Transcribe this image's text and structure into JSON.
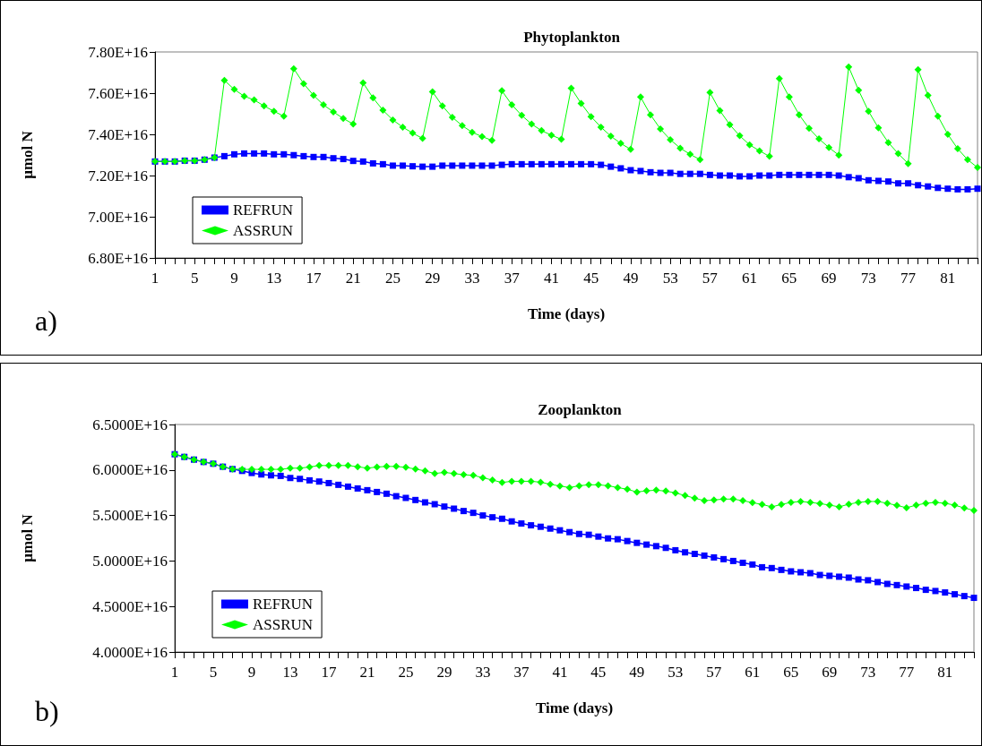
{
  "chart_data": [
    {
      "type": "line",
      "title": "Phytoplankton",
      "xlabel": "Time (days)",
      "ylabel": "µmol N",
      "annotations": [
        "a)"
      ],
      "categories": [
        "1",
        null,
        null,
        null,
        "5",
        null,
        null,
        null,
        "9",
        null,
        null,
        null,
        "13",
        null,
        null,
        null,
        "17",
        null,
        null,
        null,
        "21",
        null,
        null,
        null,
        "25",
        null,
        null,
        null,
        "29",
        null,
        null,
        null,
        "33",
        null,
        null,
        null,
        "37",
        null,
        null,
        null,
        "41",
        null,
        null,
        null,
        "45",
        null,
        null,
        null,
        "49",
        null,
        null,
        null,
        "53",
        null,
        null,
        null,
        "57",
        null,
        null,
        null,
        "61",
        null,
        null,
        null,
        "65",
        null,
        null,
        null,
        "69",
        null,
        null,
        null,
        "73",
        null,
        null,
        null,
        "77",
        null,
        null,
        null,
        "81",
        null,
        null,
        null
      ],
      "series": [
        {
          "name": "REFRUN",
          "color": "#0000ff",
          "marker": "square",
          "values": [
            7.268e+16,
            7.268e+16,
            7.268e+16,
            7.272e+16,
            7.272e+16,
            7.277e+16,
            7.287e+16,
            7.294e+16,
            7.303e+16,
            7.307e+16,
            7.307e+16,
            7.307e+16,
            7.303e+16,
            7.303e+16,
            7.299e+16,
            7.294e+16,
            7.29e+16,
            7.29e+16,
            7.284e+16,
            7.28e+16,
            7.271e+16,
            7.268e+16,
            7.259e+16,
            7.255e+16,
            7.248e+16,
            7.248e+16,
            7.245e+16,
            7.243e+16,
            7.243e+16,
            7.248e+16,
            7.248e+16,
            7.248e+16,
            7.248e+16,
            7.248e+16,
            7.248e+16,
            7.252e+16,
            7.255e+16,
            7.255e+16,
            7.255e+16,
            7.255e+16,
            7.255e+16,
            7.255e+16,
            7.255e+16,
            7.255e+16,
            7.255e+16,
            7.252e+16,
            7.243e+16,
            7.235e+16,
            7.226e+16,
            7.222e+16,
            7.216e+16,
            7.213e+16,
            7.213e+16,
            7.208e+16,
            7.208e+16,
            7.208e+16,
            7.203e+16,
            7.2e+16,
            7.2e+16,
            7.196e+16,
            7.196e+16,
            7.2e+16,
            7.2e+16,
            7.203e+16,
            7.203e+16,
            7.203e+16,
            7.203e+16,
            7.203e+16,
            7.203e+16,
            7.2e+16,
            7.192e+16,
            7.187e+16,
            7.177e+16,
            7.174e+16,
            7.171e+16,
            7.162e+16,
            7.162e+16,
            7.153e+16,
            7.147e+16,
            7.14e+16,
            7.136e+16,
            7.133e+16,
            7.133e+16,
            7.136e+16
          ]
        },
        {
          "name": "ASSRUN",
          "color": "#00ff00",
          "marker": "diamond",
          "values": [
            7.268e+16,
            7.268e+16,
            7.268e+16,
            7.272e+16,
            7.272e+16,
            7.277e+16,
            7.287e+16,
            7.662e+16,
            7.618e+16,
            7.585e+16,
            7.567e+16,
            7.538e+16,
            7.512e+16,
            7.488e+16,
            7.719e+16,
            7.646e+16,
            7.589e+16,
            7.543e+16,
            7.509e+16,
            7.477e+16,
            7.45e+16,
            7.65e+16,
            7.577e+16,
            7.517e+16,
            7.47e+16,
            7.435e+16,
            7.406e+16,
            7.38e+16,
            7.607e+16,
            7.538e+16,
            7.483e+16,
            7.442e+16,
            7.41e+16,
            7.389e+16,
            7.371e+16,
            7.612e+16,
            7.544e+16,
            7.492e+16,
            7.45e+16,
            7.418e+16,
            7.396e+16,
            7.376e+16,
            7.624e+16,
            7.55e+16,
            7.486e+16,
            7.435e+16,
            7.391e+16,
            7.356e+16,
            7.327e+16,
            7.581e+16,
            7.495e+16,
            7.426e+16,
            7.374e+16,
            7.333e+16,
            7.303e+16,
            7.277e+16,
            7.603e+16,
            7.515e+16,
            7.447e+16,
            7.393e+16,
            7.349e+16,
            7.32e+16,
            7.293e+16,
            7.671e+16,
            7.581e+16,
            7.495e+16,
            7.429e+16,
            7.378e+16,
            7.336e+16,
            7.299e+16,
            7.727e+16,
            7.614e+16,
            7.512e+16,
            7.431e+16,
            7.36e+16,
            7.306e+16,
            7.258e+16,
            7.714e+16,
            7.589e+16,
            7.488e+16,
            7.4e+16,
            7.33e+16,
            7.277e+16,
            7.239e+16
          ]
        }
      ],
      "ylim": [
        6.8e+16,
        7.8e+16
      ],
      "yticks": [
        {
          "value": 6.8e+16,
          "label": "6.80E+16"
        },
        {
          "value": 7e+16,
          "label": "7.00E+16"
        },
        {
          "value": 7.2e+16,
          "label": "7.20E+16"
        },
        {
          "value": 7.4e+16,
          "label": "7.40E+16"
        },
        {
          "value": 7.6e+16,
          "label": "7.60E+16"
        },
        {
          "value": 7.8e+16,
          "label": "7.80E+16"
        }
      ],
      "grid": false,
      "legend": "bottom left"
    },
    {
      "type": "line",
      "title": "Zooplankton",
      "xlabel": "Time (days)",
      "ylabel": "µmol N",
      "annotations": [
        "b)"
      ],
      "categories": [
        "1",
        null,
        null,
        null,
        "5",
        null,
        null,
        null,
        "9",
        null,
        null,
        null,
        "13",
        null,
        null,
        null,
        "17",
        null,
        null,
        null,
        "21",
        null,
        null,
        null,
        "25",
        null,
        null,
        null,
        "29",
        null,
        null,
        null,
        "33",
        null,
        null,
        null,
        "37",
        null,
        null,
        null,
        "41",
        null,
        null,
        null,
        "45",
        null,
        null,
        null,
        "49",
        null,
        null,
        null,
        "53",
        null,
        null,
        null,
        "57",
        null,
        null,
        null,
        "61",
        null,
        null,
        null,
        "65",
        null,
        null,
        null,
        "69",
        null,
        null,
        null,
        "73",
        null,
        null,
        null,
        "77",
        null,
        null,
        null,
        "81",
        null,
        null,
        null
      ],
      "series": [
        {
          "name": "REFRUN",
          "color": "#0000ff",
          "marker": "square",
          "values": [
            6.173e+16,
            6.144e+16,
            6.114e+16,
            6.088e+16,
            6.069e+16,
            6.036e+16,
            6.01e+16,
            5.99e+16,
            5.967e+16,
            5.951e+16,
            5.941e+16,
            5.935e+16,
            5.912e+16,
            5.902e+16,
            5.886e+16,
            5.873e+16,
            5.856e+16,
            5.837e+16,
            5.817e+16,
            5.797e+16,
            5.778e+16,
            5.758e+16,
            5.739e+16,
            5.712e+16,
            5.693e+16,
            5.67e+16,
            5.644e+16,
            5.624e+16,
            5.598e+16,
            5.575e+16,
            5.549e+16,
            5.529e+16,
            5.5e+16,
            5.48e+16,
            5.464e+16,
            5.435e+16,
            5.412e+16,
            5.392e+16,
            5.376e+16,
            5.356e+16,
            5.337e+16,
            5.317e+16,
            5.297e+16,
            5.288e+16,
            5.268e+16,
            5.248e+16,
            5.239e+16,
            5.219e+16,
            5.199e+16,
            5.18e+16,
            5.163e+16,
            5.144e+16,
            5.118e+16,
            5.095e+16,
            5.078e+16,
            5.059e+16,
            5.039e+16,
            5.02e+16,
            5e+16,
            4.98e+16,
            4.961e+16,
            4.931e+16,
            4.922e+16,
            4.902e+16,
            4.886e+16,
            4.876e+16,
            4.866e+16,
            4.846e+16,
            4.837e+16,
            4.827e+16,
            4.817e+16,
            4.797e+16,
            4.788e+16,
            4.768e+16,
            4.748e+16,
            4.735e+16,
            4.719e+16,
            4.703e+16,
            4.683e+16,
            4.67e+16,
            4.654e+16,
            4.634e+16,
            4.614e+16,
            4.595e+16
          ]
        },
        {
          "name": "ASSRUN",
          "color": "#00ff00",
          "marker": "diamond",
          "values": [
            6.173e+16,
            6.144e+16,
            6.114e+16,
            6.088e+16,
            6.069e+16,
            6.036e+16,
            6.01e+16,
            6.007e+16,
            6.007e+16,
            6.007e+16,
            6.007e+16,
            6.007e+16,
            6.02e+16,
            6.02e+16,
            6.033e+16,
            6.049e+16,
            6.049e+16,
            6.049e+16,
            6.049e+16,
            6.036e+16,
            6.02e+16,
            6.033e+16,
            6.039e+16,
            6.039e+16,
            6.029e+16,
            6.01e+16,
            5.99e+16,
            5.961e+16,
            5.974e+16,
            5.961e+16,
            5.948e+16,
            5.941e+16,
            5.915e+16,
            5.889e+16,
            5.863e+16,
            5.876e+16,
            5.876e+16,
            5.876e+16,
            5.866e+16,
            5.843e+16,
            5.824e+16,
            5.807e+16,
            5.827e+16,
            5.837e+16,
            5.837e+16,
            5.827e+16,
            5.807e+16,
            5.788e+16,
            5.758e+16,
            5.771e+16,
            5.778e+16,
            5.768e+16,
            5.748e+16,
            5.719e+16,
            5.69e+16,
            5.663e+16,
            5.67e+16,
            5.68e+16,
            5.68e+16,
            5.663e+16,
            5.641e+16,
            5.621e+16,
            5.595e+16,
            5.621e+16,
            5.644e+16,
            5.654e+16,
            5.644e+16,
            5.631e+16,
            5.614e+16,
            5.595e+16,
            5.624e+16,
            5.644e+16,
            5.654e+16,
            5.654e+16,
            5.634e+16,
            5.611e+16,
            5.585e+16,
            5.614e+16,
            5.634e+16,
            5.644e+16,
            5.634e+16,
            5.614e+16,
            5.582e+16,
            5.556e+16
          ]
        }
      ],
      "ylim": [
        4e+16,
        6.5e+16
      ],
      "yticks": [
        {
          "value": 4e+16,
          "label": "4.0000E+16"
        },
        {
          "value": 4.5e+16,
          "label": "4.5000E+16"
        },
        {
          "value": 5e+16,
          "label": "5.0000E+16"
        },
        {
          "value": 5.5e+16,
          "label": "5.5000E+16"
        },
        {
          "value": 6e+16,
          "label": "6.0000E+16"
        },
        {
          "value": 6.5e+16,
          "label": "6.5000E+16"
        }
      ],
      "grid": false,
      "legend": "bottom left"
    }
  ]
}
